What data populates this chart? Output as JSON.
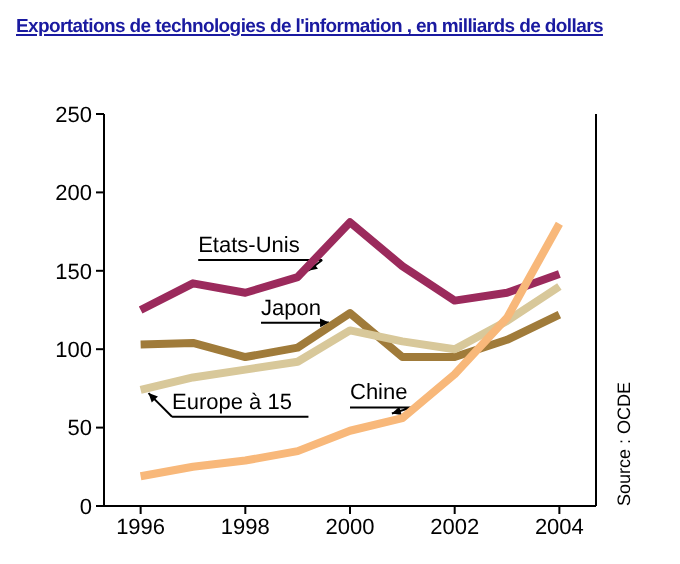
{
  "chart_data": {
    "type": "line",
    "title": "Exportations de technologies de l'information , en milliards de dollars",
    "x": [
      1996,
      1997,
      1998,
      1999,
      2000,
      2001,
      2002,
      2003,
      2004
    ],
    "xlim": [
      1995.3,
      2004.7
    ],
    "xticks": [
      1996,
      1998,
      2000,
      2002,
      2004
    ],
    "ylim": [
      0,
      250
    ],
    "yticks": [
      0,
      50,
      100,
      150,
      200,
      250
    ],
    "marker": "none",
    "line_style": "solid",
    "annotations": [
      "Source : OCDE"
    ],
    "series": [
      {
        "name": "Etats-Unis",
        "color": "#9b2a5c",
        "values": [
          125,
          142,
          136,
          146,
          181,
          153,
          131,
          136,
          148
        ]
      },
      {
        "name": "Japon",
        "color": "#a07b3a",
        "values": [
          103,
          104,
          95,
          101,
          123,
          95,
          95,
          106,
          122
        ]
      },
      {
        "name": "Europe à 15",
        "color": "#d8c89a",
        "values": [
          74,
          82,
          87,
          92,
          112,
          105,
          100,
          118,
          140
        ]
      },
      {
        "name": "Chine",
        "color": "#f8b87a",
        "values": [
          19,
          25,
          29,
          35,
          48,
          56,
          84,
          120,
          180
        ]
      }
    ]
  }
}
